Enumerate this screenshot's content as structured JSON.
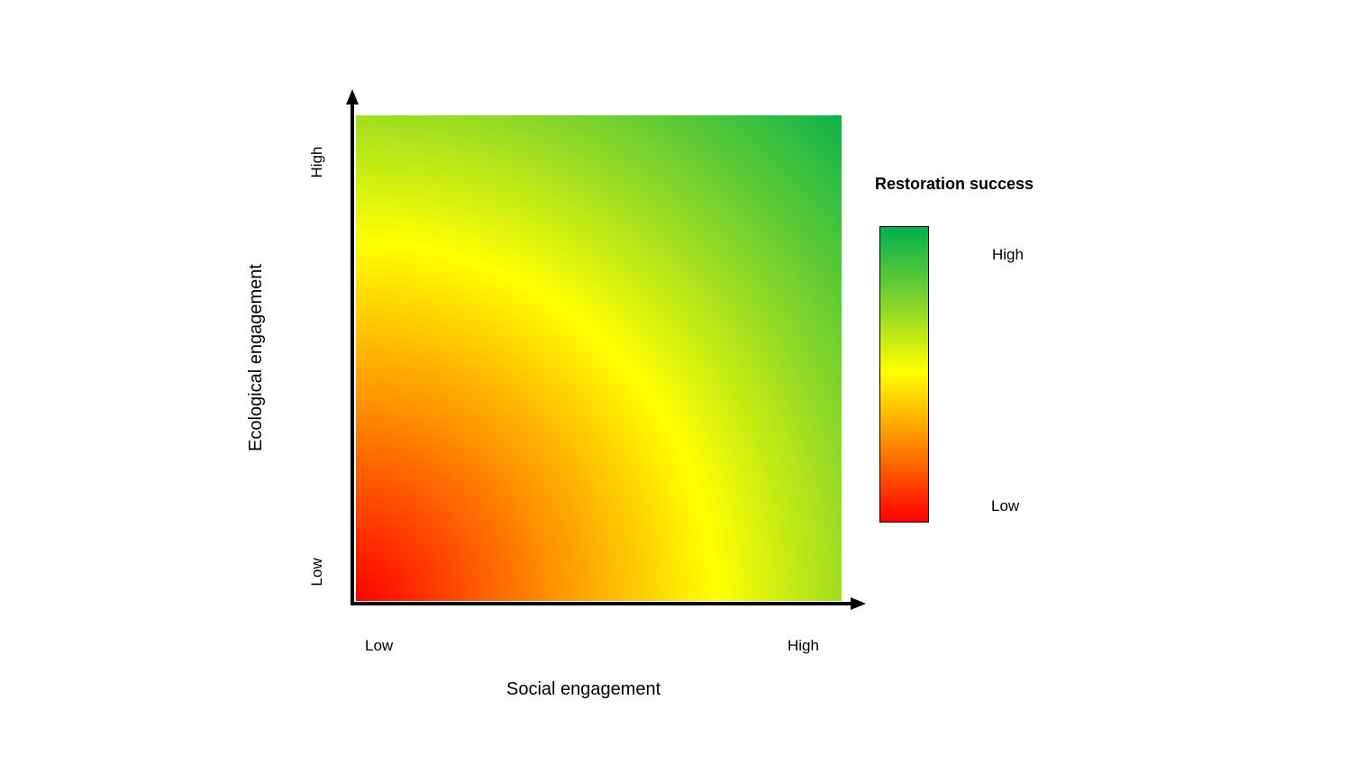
{
  "diagram": {
    "x_axis": {
      "title": "Social engagement",
      "low_label": "Low",
      "high_label": "High"
    },
    "y_axis": {
      "title": "Ecological engagement",
      "low_label": "Low",
      "high_label": "High"
    },
    "legend": {
      "title": "Restoration success",
      "high_label": "High",
      "low_label": "Low"
    },
    "colors": {
      "low": "#ff0000",
      "low_mid": "#ff8c00",
      "mid": "#ffff00",
      "high_mid": "#7fd32c",
      "high": "#00b050",
      "axis": "#000000"
    }
  }
}
